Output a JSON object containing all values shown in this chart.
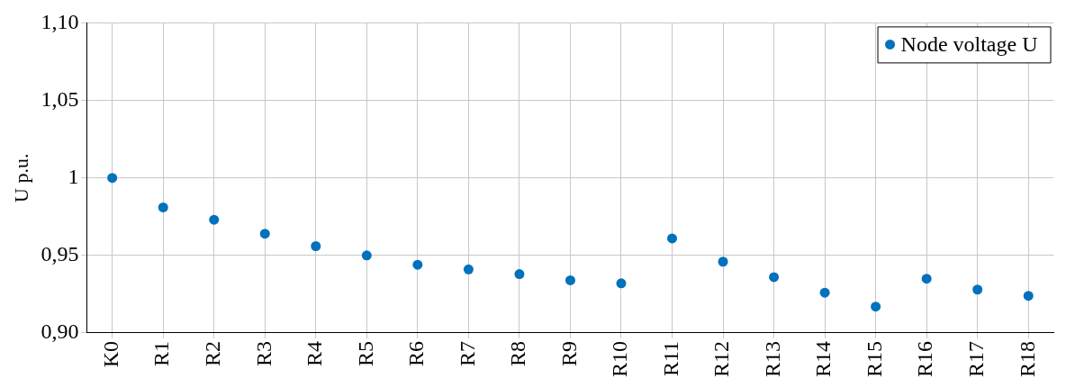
{
  "chart_data": {
    "type": "scatter",
    "ylabel": "U p.u.",
    "categories": [
      "K0",
      "R1",
      "R2",
      "R3",
      "R4",
      "R5",
      "R6",
      "R7",
      "R8",
      "R9",
      "R10",
      "R11",
      "R12",
      "R13",
      "R14",
      "R15",
      "R16",
      "R17",
      "R18"
    ],
    "series": [
      {
        "name": "Node voltage U",
        "color": "#0072bd",
        "values": [
          1.0,
          0.981,
          0.973,
          0.964,
          0.956,
          0.95,
          0.944,
          0.941,
          0.938,
          0.934,
          0.932,
          0.961,
          0.946,
          0.936,
          0.926,
          0.917,
          0.935,
          0.928,
          0.924
        ]
      }
    ],
    "ylim": [
      0.9,
      1.1
    ],
    "yticks": [
      {
        "value": 0.9,
        "label": "0,90"
      },
      {
        "value": 0.95,
        "label": "0,95"
      },
      1,
      {
        "value": 1.05,
        "label": "1,05"
      },
      {
        "value": 1.1,
        "label": "1,10"
      }
    ],
    "grid": true,
    "legend": "top right",
    "marker": "circle"
  }
}
